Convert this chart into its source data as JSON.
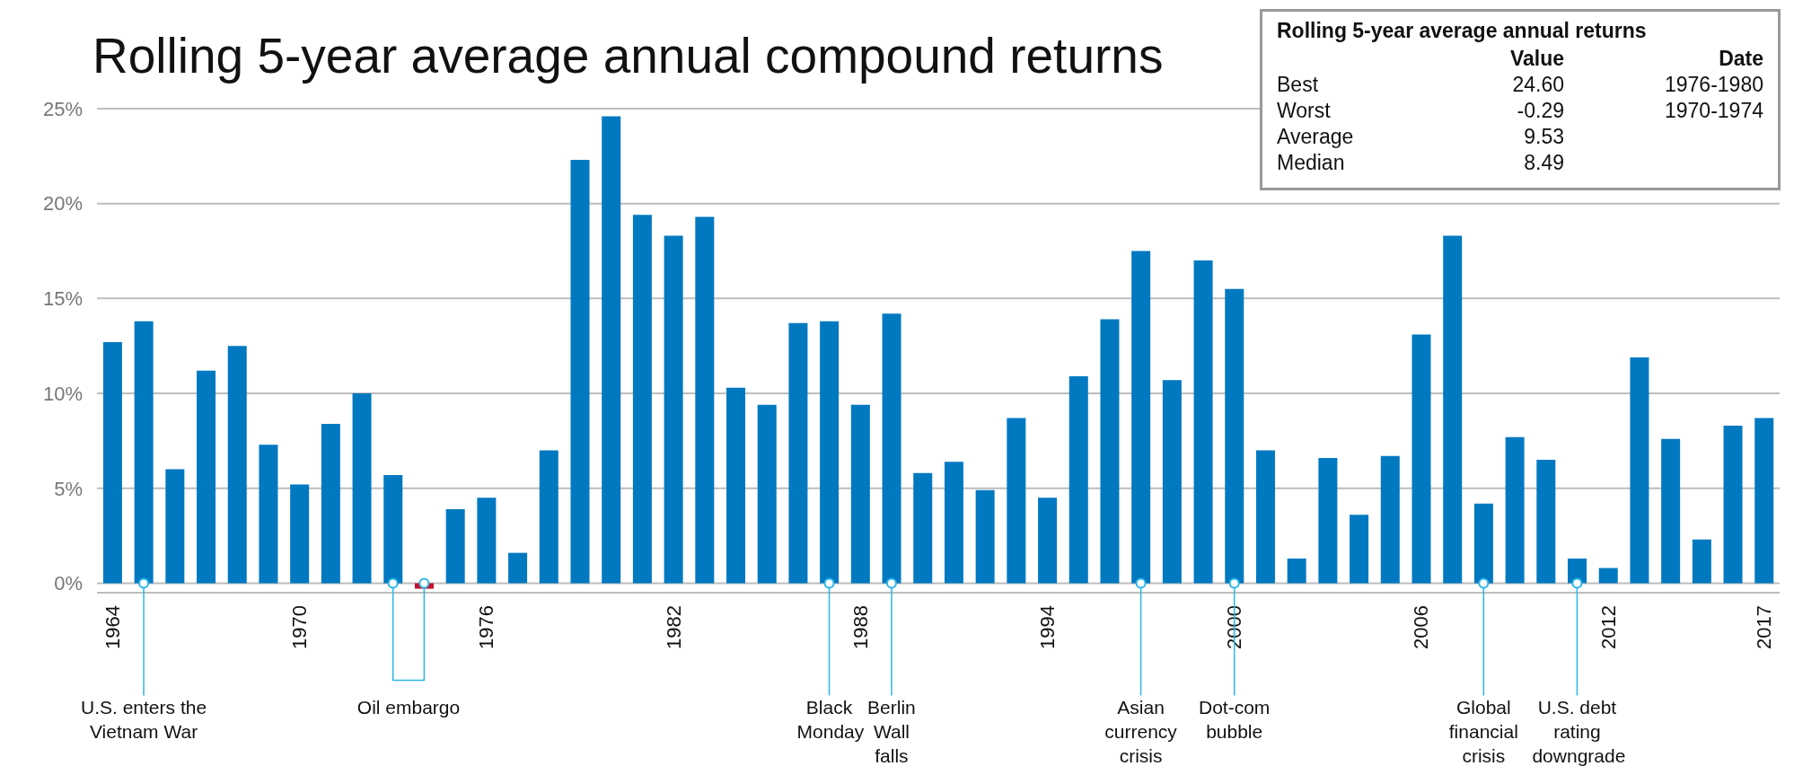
{
  "chart_data": {
    "type": "bar",
    "title": "Rolling 5-year average annual compound returns",
    "categories": [
      "1964",
      null,
      null,
      null,
      null,
      null,
      "1970",
      null,
      null,
      null,
      null,
      null,
      "1976",
      null,
      null,
      null,
      null,
      null,
      "1982",
      null,
      null,
      null,
      null,
      null,
      "1988",
      null,
      null,
      null,
      null,
      null,
      "1994",
      null,
      null,
      null,
      null,
      null,
      "2000",
      null,
      null,
      null,
      null,
      null,
      "2006",
      null,
      null,
      null,
      null,
      null,
      "2012",
      null,
      null,
      null,
      null,
      "2017"
    ],
    "values": [
      12.7,
      13.8,
      6.0,
      11.2,
      12.5,
      7.3,
      5.2,
      8.4,
      10.0,
      5.7,
      -0.29,
      3.9,
      4.5,
      1.6,
      7.0,
      22.3,
      24.6,
      19.4,
      18.3,
      19.3,
      10.3,
      9.4,
      13.7,
      13.8,
      9.4,
      14.2,
      5.8,
      6.4,
      4.9,
      8.7,
      4.5,
      10.9,
      13.9,
      17.5,
      10.7,
      17.0,
      15.5,
      7.0,
      1.3,
      6.6,
      3.6,
      6.7,
      13.1,
      18.3,
      4.2,
      7.7,
      6.5,
      1.3,
      0.8,
      11.9,
      7.6,
      2.3,
      8.3,
      8.7
    ],
    "colors": [
      "#0079c1",
      "#0079c1",
      "#0079c1",
      "#0079c1",
      "#0079c1",
      "#0079c1",
      "#0079c1",
      "#0079c1",
      "#0079c1",
      "#0079c1",
      "#c8102e",
      "#0079c1",
      "#0079c1",
      "#0079c1",
      "#0079c1",
      "#0079c1",
      "#0079c1",
      "#0079c1",
      "#0079c1",
      "#0079c1",
      "#0079c1",
      "#0079c1",
      "#0079c1",
      "#0079c1",
      "#0079c1",
      "#0079c1",
      "#0079c1",
      "#0079c1",
      "#0079c1",
      "#0079c1",
      "#0079c1",
      "#0079c1",
      "#0079c1",
      "#0079c1",
      "#0079c1",
      "#0079c1",
      "#0079c1",
      "#0079c1",
      "#0079c1",
      "#0079c1",
      "#0079c1",
      "#0079c1",
      "#0079c1",
      "#0079c1",
      "#0079c1",
      "#0079c1",
      "#0079c1",
      "#0079c1",
      "#0079c1",
      "#0079c1",
      "#0079c1",
      "#0079c1",
      "#0079c1",
      "#0079c1"
    ],
    "ylim": [
      -0.5,
      25
    ],
    "yticks": [
      {
        "value": 0,
        "label": "0%"
      },
      {
        "value": 5,
        "label": "5%"
      },
      {
        "value": 10,
        "label": "10%"
      },
      {
        "value": 15,
        "label": "15%"
      },
      {
        "value": 20,
        "label": "20%"
      },
      {
        "value": 25,
        "label": "25%"
      }
    ],
    "grid": "y",
    "annotations": [
      "Rolling 5-year average annual returns",
      "Value",
      "Date",
      "Best",
      "24.60",
      "1976-1980",
      "Worst",
      "-0.29",
      "1970-1974",
      "Average",
      "9.53",
      "Median",
      "8.49",
      {
        "text": "U.S. enters the Vietnam War",
        "y": 0
      },
      "Oil embargo",
      {
        "text": "Black Monday",
        "y": 0
      },
      {
        "text": "Berlin Wall falls",
        "y": 0
      },
      {
        "text": "Asian currency crisis",
        "y": 0
      },
      {
        "text": "Dot-com bubble",
        "x": "2000",
        "y": 0
      },
      {
        "text": "Global financial crisis",
        "y": 0
      },
      {
        "text": "U.S. debt rating downgrade",
        "y": 0
      }
    ]
  }
}
